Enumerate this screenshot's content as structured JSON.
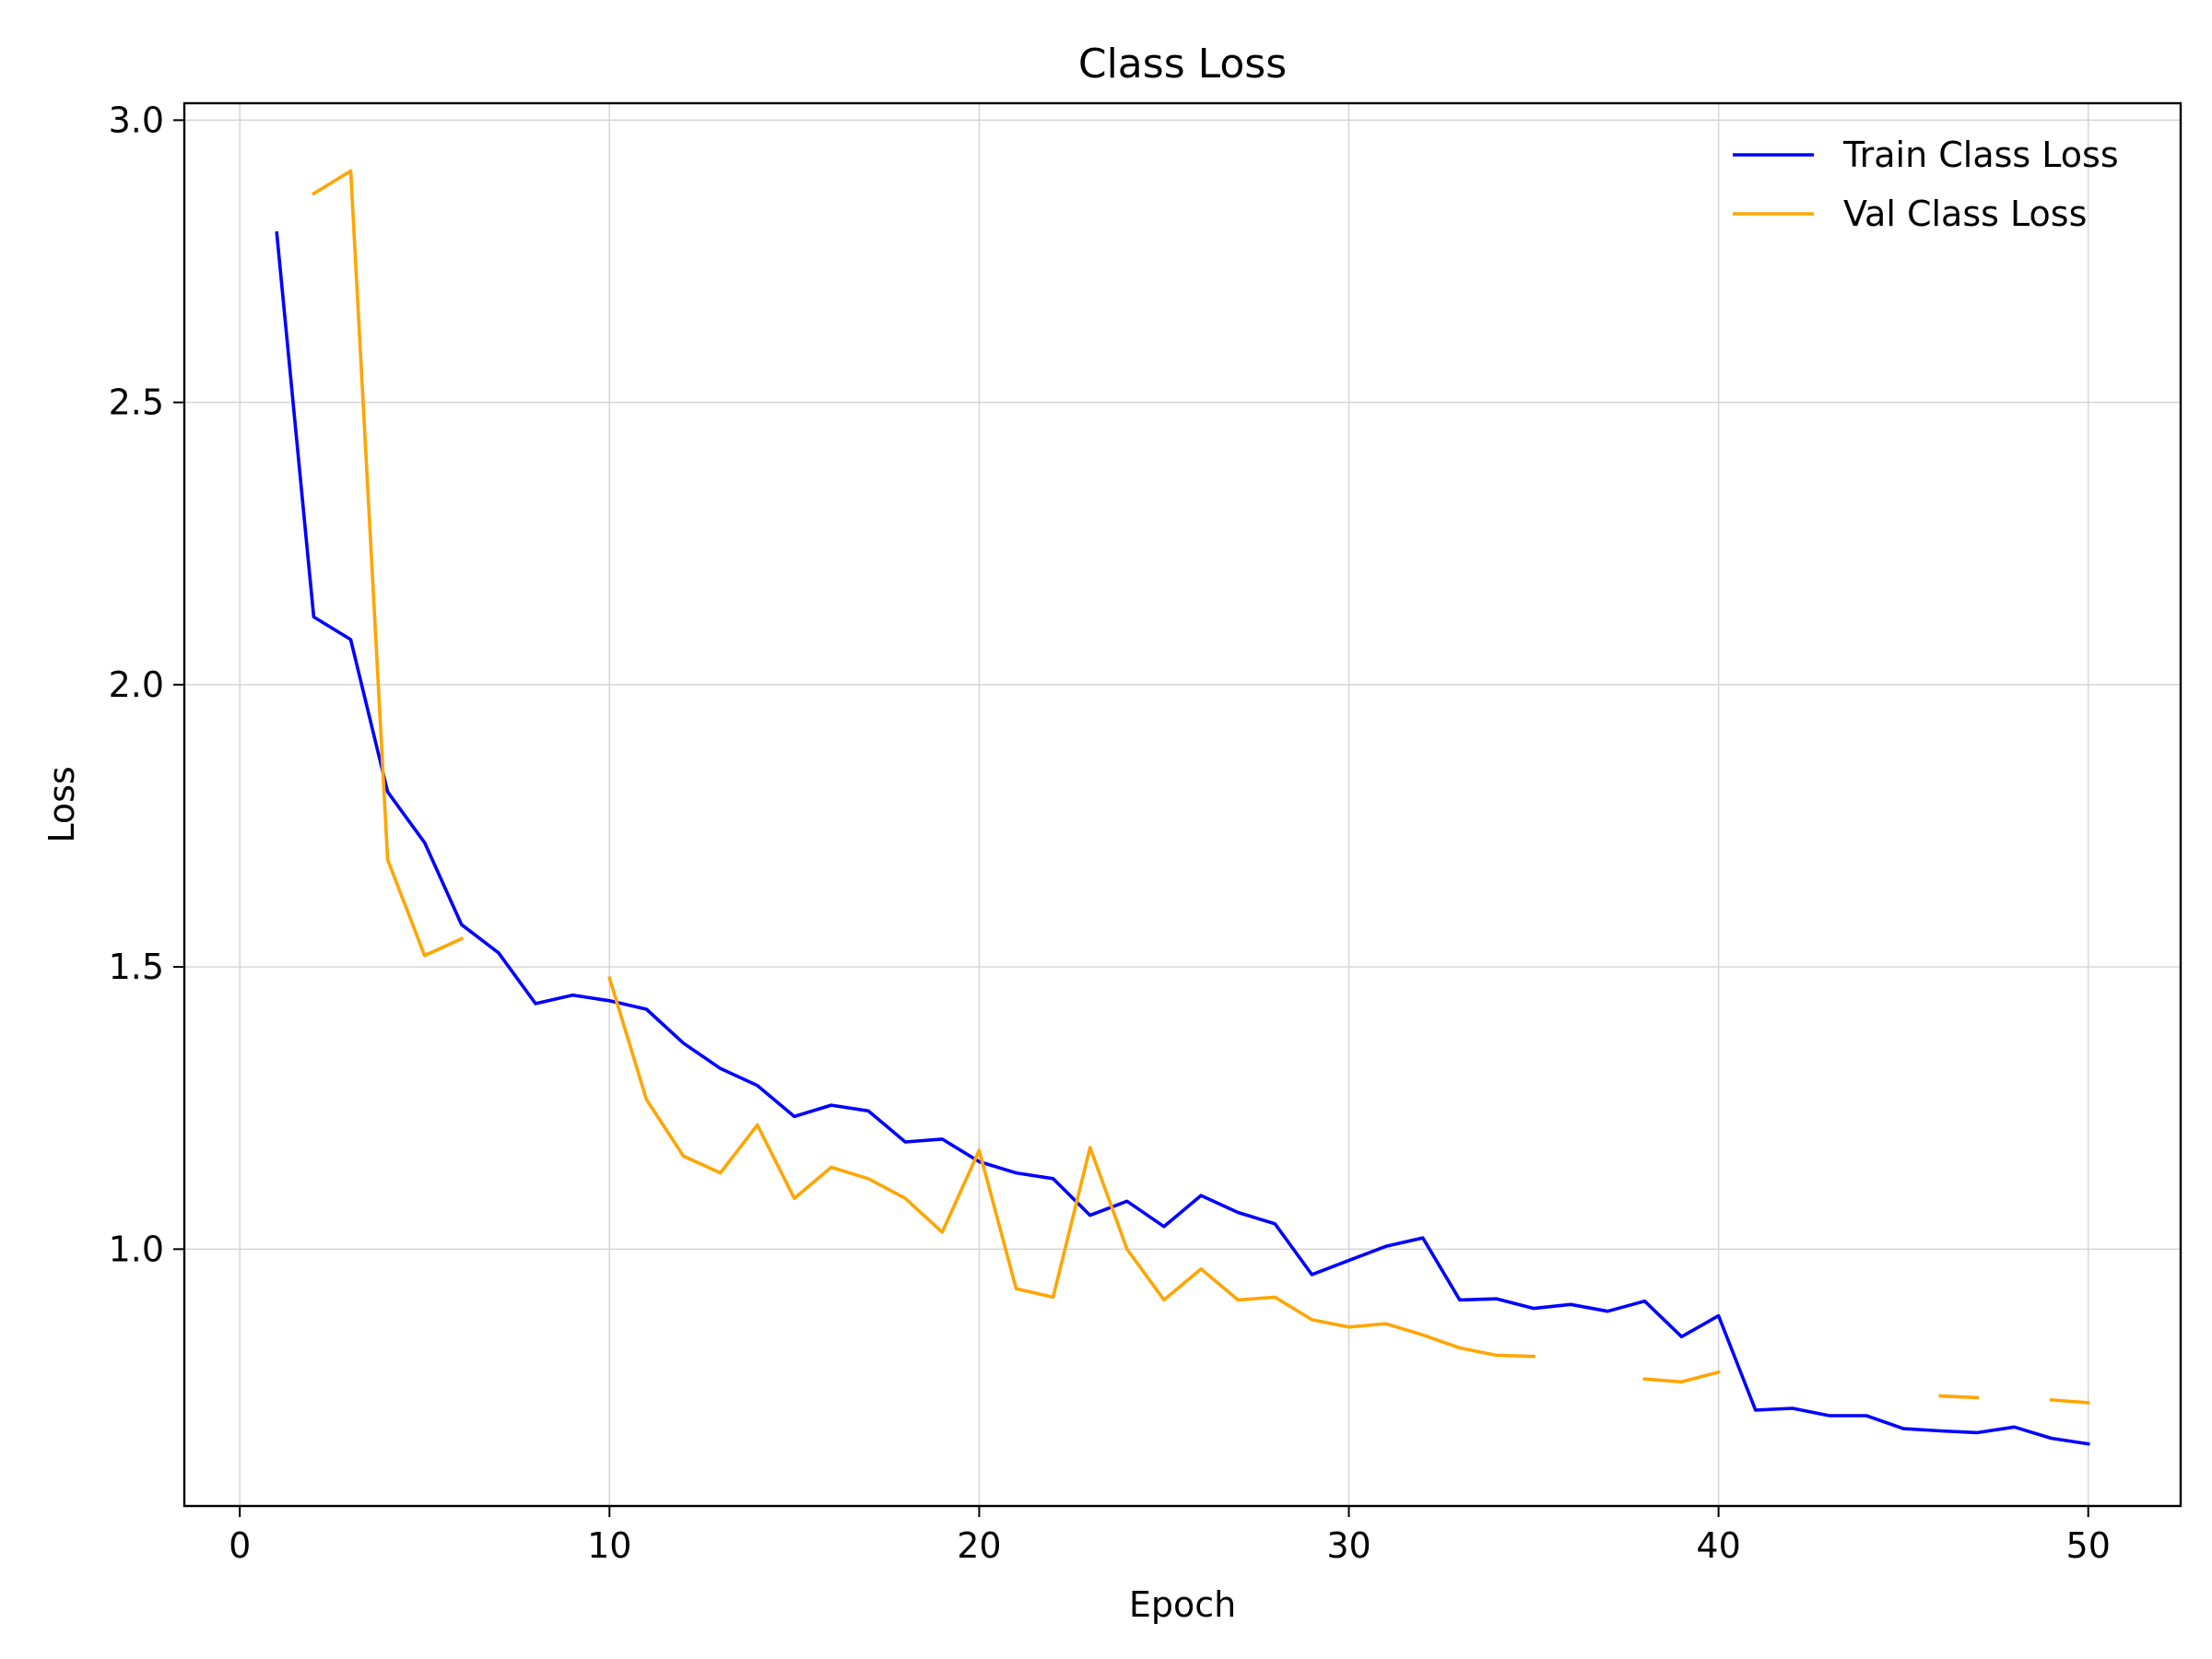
{
  "chart_data": {
    "type": "line",
    "title": "Class Loss",
    "xlabel": "Epoch",
    "ylabel": "Loss",
    "xlim": [
      -1.5,
      52.5
    ],
    "ylim": [
      0.545,
      3.03
    ],
    "xticks": [
      0,
      10,
      20,
      30,
      40,
      50
    ],
    "xtick_labels": [
      "0",
      "10",
      "20",
      "30",
      "40",
      "50"
    ],
    "yticks": [
      1.0,
      1.5,
      2.0,
      2.5,
      3.0
    ],
    "ytick_labels": [
      "1.0",
      "1.5",
      "2.0",
      "2.5",
      "3.0"
    ],
    "grid": true,
    "legend_position": "top-right",
    "x": [
      1,
      2,
      3,
      4,
      5,
      6,
      7,
      8,
      9,
      10,
      11,
      12,
      13,
      14,
      15,
      16,
      17,
      18,
      19,
      20,
      21,
      22,
      23,
      24,
      25,
      26,
      27,
      28,
      29,
      30,
      31,
      32,
      33,
      34,
      35,
      36,
      37,
      38,
      39,
      40,
      41,
      42,
      43,
      44,
      45,
      46,
      47,
      48,
      49,
      50
    ],
    "series": [
      {
        "name": "Train Class Loss",
        "color": "#0000ff",
        "values": [
          2.8,
          2.12,
          2.08,
          1.81,
          1.72,
          1.575,
          1.525,
          1.435,
          1.45,
          1.44,
          1.425,
          1.365,
          1.32,
          1.29,
          1.235,
          1.255,
          1.245,
          1.19,
          1.195,
          1.155,
          1.135,
          1.125,
          1.06,
          1.085,
          1.04,
          1.095,
          1.065,
          1.045,
          0.955,
          0.98,
          1.005,
          1.02,
          0.91,
          0.912,
          0.895,
          0.902,
          0.89,
          0.908,
          0.845,
          0.882,
          0.715,
          0.718,
          0.705,
          0.705,
          0.682,
          0.678,
          0.675,
          0.685,
          0.665,
          0.655
        ]
      },
      {
        "name": "Val Class Loss",
        "color": "#ffa500",
        "values": [
          null,
          2.87,
          2.91,
          1.69,
          1.52,
          1.55,
          null,
          null,
          null,
          1.48,
          1.265,
          1.165,
          1.135,
          1.22,
          1.09,
          1.145,
          1.125,
          1.09,
          1.03,
          1.175,
          0.93,
          0.915,
          1.18,
          1.0,
          0.91,
          0.965,
          0.91,
          0.915,
          0.875,
          0.862,
          0.868,
          0.848,
          0.825,
          0.812,
          0.81,
          null,
          null,
          0.77,
          0.765,
          0.782,
          null,
          null,
          null,
          null,
          null,
          0.74,
          0.737,
          null,
          0.733,
          0.728
        ]
      }
    ]
  }
}
